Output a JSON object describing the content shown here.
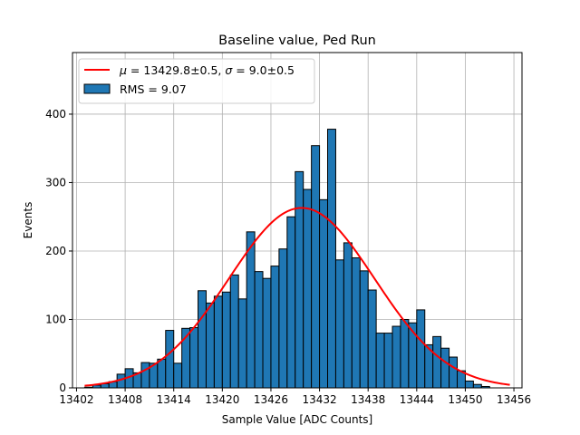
{
  "chart_data": {
    "type": "bar",
    "title": "Baseline value, Ped Run",
    "xlabel": "Sample Value [ADC Counts]",
    "ylabel": "Events",
    "xlim": [
      13401.5,
      13457.0
    ],
    "ylim": [
      0,
      490
    ],
    "xticks": [
      13402,
      13408,
      13414,
      13420,
      13426,
      13432,
      13438,
      13444,
      13450,
      13456
    ],
    "yticks": [
      0,
      100,
      200,
      300,
      400
    ],
    "grid": true,
    "legend_position": "top-left",
    "histogram": {
      "name": "RMS = 9.07",
      "color": "#1f77b4",
      "edge_color": "#000000",
      "bin_start": 13403.0,
      "bin_width": 1.0,
      "counts": [
        1,
        4,
        6,
        9,
        20,
        28,
        22,
        37,
        36,
        42,
        84,
        36,
        87,
        88,
        142,
        124,
        134,
        140,
        165,
        130,
        228,
        170,
        160,
        178,
        203,
        250,
        316,
        290,
        354,
        275,
        378,
        187,
        212,
        190,
        171,
        143,
        80,
        80,
        90,
        100,
        95,
        114,
        63,
        75,
        58,
        45,
        25,
        10,
        5,
        2
      ]
    },
    "fit": {
      "name": "$\\mu = 13429.8 \\pm 0.5$, $\\sigma = 9.0 \\pm 0.5$",
      "color": "#ff0000",
      "mu": 13429.8,
      "sigma": 9.0,
      "amplitude": 263,
      "x_range": [
        13403.0,
        13455.5
      ]
    },
    "legend": [
      {
        "label": "μ = 13429.8±0.5, σ = 9.0±0.5",
        "kind": "line",
        "color": "#ff0000"
      },
      {
        "label": "RMS = 9.07",
        "kind": "patch",
        "color": "#1f77b4"
      }
    ]
  }
}
